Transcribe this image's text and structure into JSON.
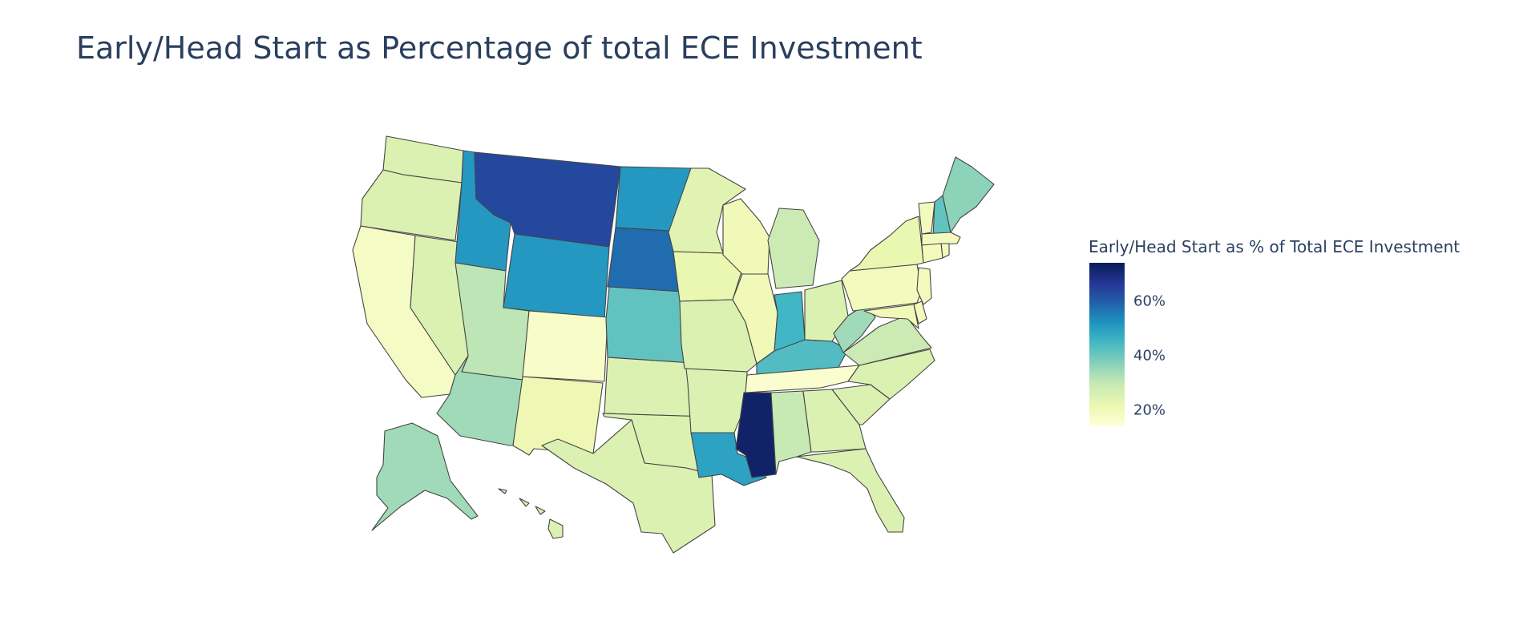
{
  "title": "Early/Head Start as Percentage of total ECE Investment",
  "colorbar": {
    "title": "Early/Head Start as % of Total ECE Investment",
    "ticks": [
      "60%",
      "40%",
      "20%"
    ],
    "tick_values": [
      60,
      40,
      20
    ],
    "range": [
      14,
      74
    ],
    "colorscale": "YlGnBu",
    "colors": [
      "#ffffd9",
      "#edf8b1",
      "#c7e9b4",
      "#7fcdbb",
      "#41b6c4",
      "#1d91c0",
      "#225ea8",
      "#253494",
      "#081d58"
    ]
  },
  "map_data": {
    "type": "choropleth",
    "scope": "usa",
    "values": [
      {
        "state": "WA",
        "value": 25
      },
      {
        "state": "OR",
        "value": 25
      },
      {
        "state": "CA",
        "value": 18
      },
      {
        "state": "NV",
        "value": 25
      },
      {
        "state": "ID",
        "value": 50
      },
      {
        "state": "MT",
        "value": 63
      },
      {
        "state": "WY",
        "value": 50
      },
      {
        "state": "UT",
        "value": 30
      },
      {
        "state": "AZ",
        "value": 33
      },
      {
        "state": "CO",
        "value": 17
      },
      {
        "state": "NM",
        "value": 21
      },
      {
        "state": "ND",
        "value": 50
      },
      {
        "state": "SD",
        "value": 57
      },
      {
        "state": "NE",
        "value": 40
      },
      {
        "state": "KS",
        "value": 25
      },
      {
        "state": "OK",
        "value": 25
      },
      {
        "state": "TX",
        "value": 25
      },
      {
        "state": "MN",
        "value": 24
      },
      {
        "state": "IA",
        "value": 22
      },
      {
        "state": "MO",
        "value": 25
      },
      {
        "state": "AR",
        "value": 25
      },
      {
        "state": "LA",
        "value": 48
      },
      {
        "state": "WI",
        "value": 20
      },
      {
        "state": "IL",
        "value": 20
      },
      {
        "state": "MI",
        "value": 28
      },
      {
        "state": "IN",
        "value": 44
      },
      {
        "state": "OH",
        "value": 25
      },
      {
        "state": "KY",
        "value": 42
      },
      {
        "state": "TN",
        "value": 16
      },
      {
        "state": "MS",
        "value": 72
      },
      {
        "state": "AL",
        "value": 29
      },
      {
        "state": "GA",
        "value": 25
      },
      {
        "state": "FL",
        "value": 25
      },
      {
        "state": "SC",
        "value": 25
      },
      {
        "state": "NC",
        "value": 25
      },
      {
        "state": "VA",
        "value": 28
      },
      {
        "state": "WV",
        "value": 33
      },
      {
        "state": "PA",
        "value": 19
      },
      {
        "state": "NY",
        "value": 22
      },
      {
        "state": "VT",
        "value": 19
      },
      {
        "state": "NH",
        "value": 40
      },
      {
        "state": "ME",
        "value": 35
      },
      {
        "state": "MA",
        "value": 19
      },
      {
        "state": "RI",
        "value": 19
      },
      {
        "state": "CT",
        "value": 19
      },
      {
        "state": "NJ",
        "value": 19
      },
      {
        "state": "DE",
        "value": 19
      },
      {
        "state": "MD",
        "value": 20
      },
      {
        "state": "AK",
        "value": 33
      },
      {
        "state": "HI",
        "value": 25
      }
    ]
  }
}
